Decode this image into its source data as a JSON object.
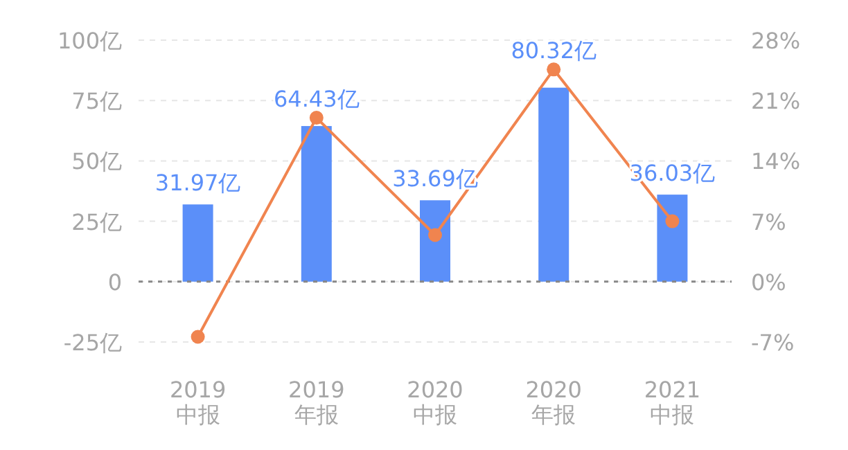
{
  "chart_data": {
    "type": "bar",
    "categories": [
      "2019\n中报",
      "2019\n年报",
      "2020\n中报",
      "2020\n年报",
      "2021\n中报"
    ],
    "series": [
      {
        "color": "#5b8ff9",
        "values": [
          31.97,
          64.43,
          33.69,
          80.32,
          36.03
        ],
        "value_labels": [
          "31.97亿",
          "64.43亿",
          "33.69亿",
          "80.32亿",
          "36.03亿"
        ]
      },
      {
        "type": "line",
        "axis": "y2",
        "color": "#f0844f",
        "values": [
          -6.4,
          19.0,
          5.4,
          24.6,
          7.0
        ],
        "marker": "circle"
      }
    ],
    "ylim": [
      -25,
      100
    ],
    "yticks": [
      {
        "value": -25,
        "label": "-25亿"
      },
      {
        "value": 0,
        "label": "0"
      },
      {
        "value": 25,
        "label": "25亿"
      },
      {
        "value": 50,
        "label": "50亿"
      },
      {
        "value": 75,
        "label": "75亿"
      },
      {
        "value": 100,
        "label": "100亿"
      }
    ],
    "y2lim": [
      -7,
      28
    ],
    "y2ticks": [
      {
        "value": -7,
        "label": "-7%"
      },
      {
        "value": 0,
        "label": "0%"
      },
      {
        "value": 7,
        "label": "7%"
      },
      {
        "value": 14,
        "label": "14%"
      },
      {
        "value": 21,
        "label": "21%"
      },
      {
        "value": 28,
        "label": "28%"
      }
    ],
    "grid": "y",
    "ref_lines": [
      {
        "axis": "y",
        "value": 0,
        "color": "#888888",
        "line_style": "dotted"
      }
    ]
  }
}
